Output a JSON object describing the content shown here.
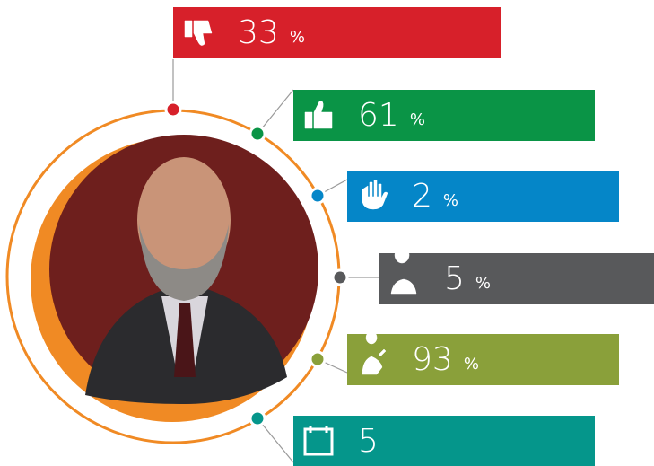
{
  "items": [
    {
      "value": "33",
      "unit": "%"
    },
    {
      "value": "61",
      "unit": "%"
    },
    {
      "value": "2",
      "unit": "%"
    },
    {
      "value": "5",
      "unit": "%"
    },
    {
      "value": "93",
      "unit": "%"
    },
    {
      "value": "5"
    }
  ]
}
